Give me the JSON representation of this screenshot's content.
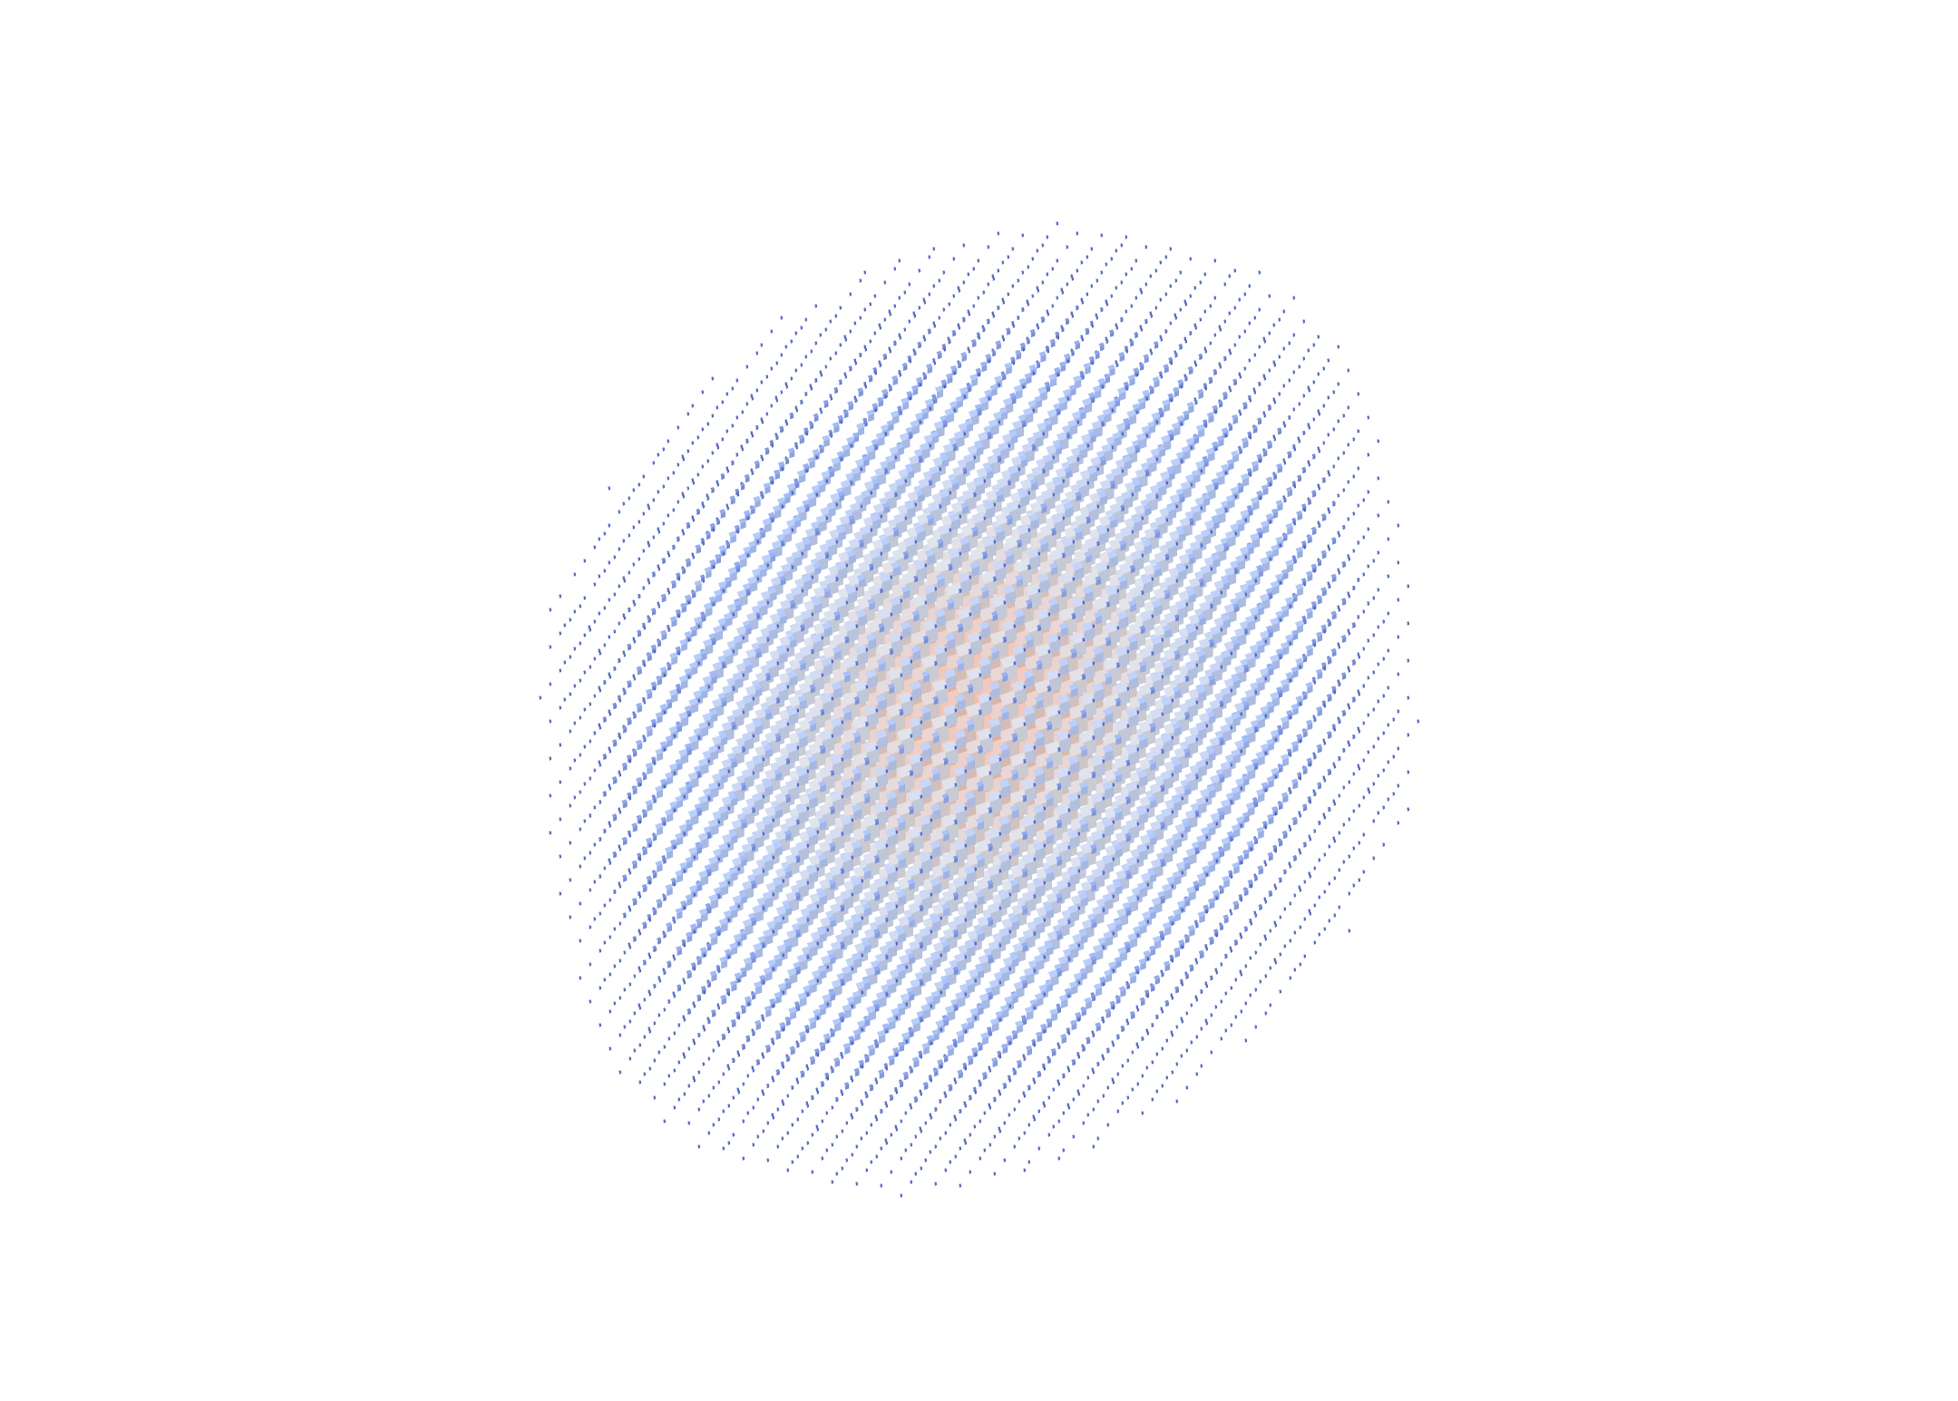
{
  "render": {
    "type": "3d-voxel-cube-field",
    "projection": "orthographic-isometric",
    "grid": {
      "shape": "ellipsoid",
      "lattice_spacing": 1.0
    },
    "cube_size": {
      "mapping": "decreasing-with-radius",
      "max": 1.0,
      "min": 0.04
    },
    "color_scale": {
      "name": "coolwarm",
      "low": "#3b4cc0",
      "mid": "#dddddd",
      "high": "#e7745b"
    },
    "colors": {
      "background": "#ffffff",
      "inner_cube": "#f2b49c",
      "mid_cube": "#d9dce3",
      "outer_cube": "#a9c1f7",
      "tiny_cube": "#4f66d6"
    }
  }
}
